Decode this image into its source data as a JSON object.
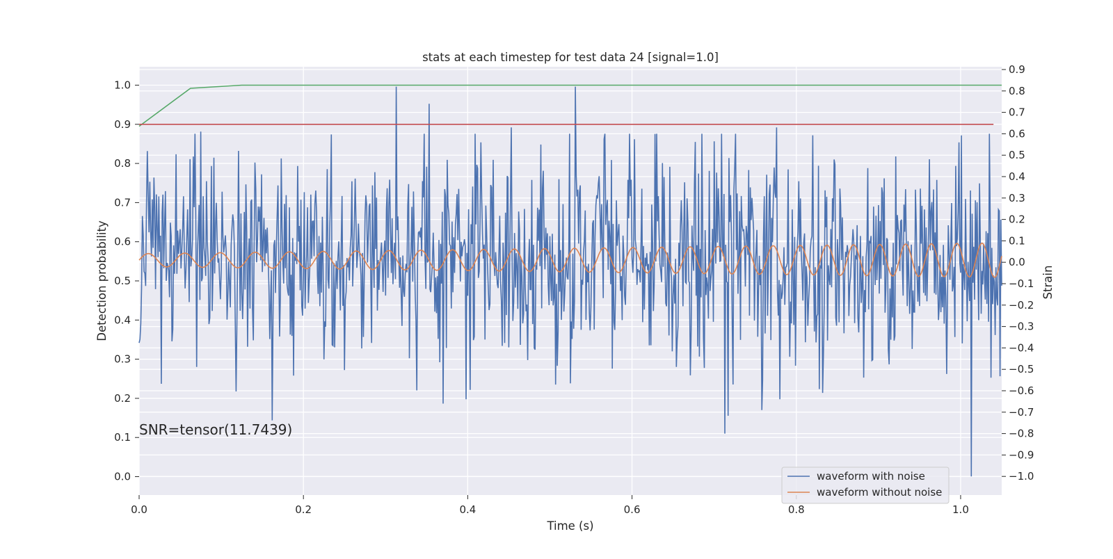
{
  "chart_data": {
    "type": "line",
    "title": "stats at each timestep for test data 24 [signal=1.0]",
    "xlabel": "Time (s)",
    "ylabel": "Detection probability",
    "y2label": "Strain",
    "xlim": [
      0.0,
      1.05
    ],
    "ylim": [
      -0.047,
      1.047
    ],
    "y2lim": [
      -1.087,
      0.913
    ],
    "x_ticks": [
      0.0,
      0.2,
      0.4,
      0.6,
      0.8,
      1.0
    ],
    "x_tick_labels": [
      "0.0",
      "0.2",
      "0.4",
      "0.6",
      "0.8",
      "1.0"
    ],
    "y_ticks": [
      0.0,
      0.1,
      0.2,
      0.3,
      0.4,
      0.5,
      0.6,
      0.7,
      0.8,
      0.9,
      1.0
    ],
    "y_tick_labels": [
      "0.0",
      "0.1",
      "0.2",
      "0.3",
      "0.4",
      "0.5",
      "0.6",
      "0.7",
      "0.8",
      "0.9",
      "1.0"
    ],
    "y2_ticks": [
      -1.0,
      -0.9,
      -0.8,
      -0.7,
      -0.6,
      -0.5,
      -0.4,
      -0.3,
      -0.2,
      -0.1,
      0.0,
      0.1,
      0.2,
      0.3,
      0.4,
      0.5,
      0.6,
      0.7,
      0.8,
      0.9
    ],
    "y2_tick_labels": [
      "−1.0",
      "−0.9",
      "−0.8",
      "−0.7",
      "−0.6",
      "−0.5",
      "−0.4",
      "−0.3",
      "−0.2",
      "−0.1",
      "0.0",
      "0.1",
      "0.2",
      "0.3",
      "0.4",
      "0.5",
      "0.6",
      "0.7",
      "0.8",
      "0.9"
    ],
    "grid": true,
    "legend_position": "bottom-right",
    "annotation": "SNR=tensor(11.7439)",
    "series": [
      {
        "name": "waveform with noise",
        "axis": "right",
        "color": "#4c72b0",
        "noise_sigma": 0.24,
        "extremes": [
          {
            "x": 0.313,
            "y": 0.82
          },
          {
            "x": 0.353,
            "y": 0.74
          },
          {
            "x": 0.453,
            "y": 0.63
          },
          {
            "x": 0.531,
            "y": 0.82
          },
          {
            "x": 0.776,
            "y": 0.63
          },
          {
            "x": 0.075,
            "y": 0.61
          },
          {
            "x": 0.37,
            "y": -0.66
          },
          {
            "x": 0.398,
            "y": -0.64
          },
          {
            "x": 0.713,
            "y": -0.8
          },
          {
            "x": 0.758,
            "y": -0.69
          },
          {
            "x": 0.78,
            "y": -0.64
          },
          {
            "x": 0.832,
            "y": -0.61
          },
          {
            "x": 1.013,
            "y": -1.0
          }
        ]
      },
      {
        "name": "waveform without noise",
        "axis": "right",
        "color": "#dd8452",
        "chirp": {
          "f0": 22.3,
          "k": 1.7,
          "amp0": 0.03,
          "amp_slope": 0.048,
          "offset": 0.01
        }
      },
      {
        "name": "",
        "axis": "left",
        "color": "#55a868",
        "x": [
          0.0,
          0.0625,
          0.125,
          0.1875,
          1.05
        ],
        "values": [
          0.895,
          0.992,
          1.0,
          1.0,
          1.0
        ]
      },
      {
        "name": "",
        "axis": "left",
        "color": "#c44e52",
        "x": [
          0.0,
          1.04
        ],
        "values": [
          0.9,
          0.9
        ]
      }
    ]
  }
}
